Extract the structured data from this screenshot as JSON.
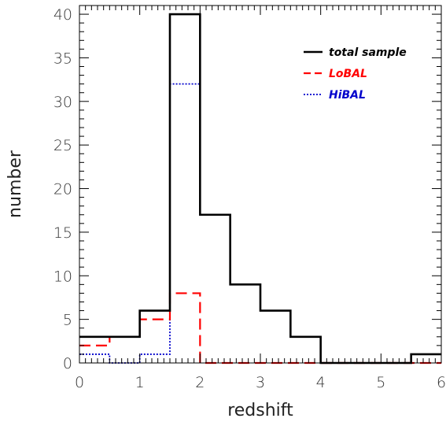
{
  "chart_data": {
    "type": "histogram",
    "xlabel": "redshift",
    "ylabel": "number",
    "xlim": [
      0,
      6
    ],
    "ylim": [
      0,
      41
    ],
    "xticks": [
      0,
      1,
      2,
      3,
      4,
      5,
      6
    ],
    "yticks": [
      0,
      5,
      10,
      15,
      20,
      25,
      30,
      35,
      40
    ],
    "bin_edges": [
      0,
      0.5,
      1,
      1.5,
      2,
      2.5,
      3,
      3.5,
      4,
      4.5,
      5,
      5.5,
      6
    ],
    "legend_position": "top-right",
    "series": [
      {
        "name": "total sample",
        "color": "#000000",
        "style": "solid",
        "values": [
          3,
          3,
          6,
          40,
          17,
          9,
          6,
          3,
          0,
          0,
          0,
          1
        ]
      },
      {
        "name": "LoBAL",
        "color": "#ff0000",
        "style": "dashed",
        "values": [
          2,
          3,
          5,
          8,
          0,
          0,
          0,
          0,
          0,
          0,
          0,
          0
        ]
      },
      {
        "name": "HiBAL",
        "color": "#0000cc",
        "style": "dotted",
        "values": [
          1,
          0,
          1,
          32,
          17,
          9,
          6,
          3,
          0,
          0,
          0,
          1
        ]
      }
    ]
  }
}
